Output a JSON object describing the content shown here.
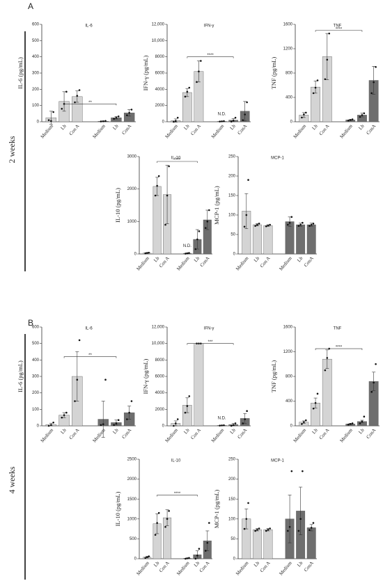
{
  "panels": [
    {
      "letter": "A",
      "period": "2 weeks"
    },
    {
      "letter": "B",
      "period": "4 weeks"
    }
  ],
  "chart_data": [
    {
      "type": "bar",
      "title": "IL-6",
      "ylabel": "IL-6 (pg/mL)",
      "categories": [
        "Medium",
        "Lb",
        "Con A",
        "Medium",
        "Lb",
        "ConA"
      ],
      "colors": [
        "#d4d4d4",
        "#d4d4d4",
        "#d4d4d4",
        "#6e6e6e",
        "#6e6e6e",
        "#6e6e6e"
      ],
      "values": [
        25,
        125,
        155,
        3,
        25,
        55
      ],
      "errors": [
        40,
        60,
        35,
        2,
        8,
        20
      ],
      "points": [
        [
          10,
          5,
          60
        ],
        [
          80,
          110,
          185
        ],
        [
          120,
          160,
          195
        ],
        [
          2,
          3,
          5
        ],
        [
          18,
          25,
          33
        ],
        [
          40,
          55,
          75
        ]
      ],
      "ylim": [
        0,
        600
      ],
      "yticks": [
        0,
        100,
        200,
        300,
        400,
        500,
        600
      ],
      "bracket": {
        "label": "**",
        "value": 110
      },
      "value_notes": [
        null,
        null,
        null,
        null,
        null,
        null
      ]
    },
    {
      "type": "bar",
      "title": "IFN-γ",
      "ylabel": "IFN-γ (pg/mL)",
      "categories": [
        "Medium",
        "Lb",
        "Con A",
        "Medium",
        "Lb",
        "ConA"
      ],
      "colors": [
        "#d4d4d4",
        "#d4d4d4",
        "#d4d4d4",
        "#6e6e6e",
        "#6e6e6e",
        "#6e6e6e"
      ],
      "values": [
        150,
        3600,
        6200,
        50,
        200,
        1300
      ],
      "errors": [
        200,
        500,
        1300,
        30,
        200,
        1200
      ],
      "points": [
        [
          0,
          100,
          500
        ],
        [
          3100,
          3700,
          4200
        ],
        [
          4900,
          6200,
          7500
        ],
        [
          30,
          50,
          80
        ],
        [
          20,
          150,
          500
        ],
        [
          200,
          900,
          2400
        ]
      ],
      "ylim": [
        0,
        12000
      ],
      "yticks": [
        0,
        {
          "value": 2000,
          "label": "2000"
        },
        {
          "value": 4000,
          "label": "4000"
        },
        {
          "value": 6000,
          "label": "6000"
        },
        {
          "value": 8000,
          "label": "8000"
        },
        {
          "value": 10000,
          "label": "10,000"
        },
        {
          "value": 12000,
          "label": "12,000"
        }
      ],
      "bracket": {
        "label": "****",
        "value": 8000
      },
      "value_notes": [
        null,
        null,
        null,
        "N.D.",
        null,
        null
      ]
    },
    {
      "type": "bar",
      "title": "TNF",
      "ylabel": "TNF (pg/mL)",
      "categories": [
        "Medium",
        "Lb",
        "Con A",
        "Medium",
        "Lb",
        "ConA"
      ],
      "colors": [
        "#d4d4d4",
        "#d4d4d4",
        "#d4d4d4",
        "#6e6e6e",
        "#6e6e6e",
        "#6e6e6e"
      ],
      "values": [
        110,
        570,
        1070,
        30,
        110,
        680
      ],
      "errors": [
        40,
        100,
        380,
        10,
        30,
        230
      ],
      "points": [
        [
          70,
          120,
          150
        ],
        [
          470,
          560,
          680
        ],
        [
          700,
          1020,
          1450
        ],
        [
          20,
          30,
          40
        ],
        [
          80,
          110,
          140
        ],
        [
          470,
          650,
          900
        ]
      ],
      "ylim": [
        0,
        1600
      ],
      "yticks": [
        0,
        400,
        800,
        1200,
        1600
      ],
      "bracket": {
        "label": "****",
        "value": 1500
      },
      "value_notes": [
        null,
        null,
        null,
        null,
        null,
        null
      ]
    },
    {
      "type": "bar",
      "title": "IL-10",
      "ylabel": "IL-10 (pg/mL)",
      "categories": [
        "Medium",
        "Lb",
        "Con A",
        "Medium",
        "Lb",
        "ConA"
      ],
      "colors": [
        "#d4d4d4",
        "#d4d4d4",
        "#d4d4d4",
        "#6e6e6e",
        "#6e6e6e",
        "#6e6e6e"
      ],
      "values": [
        30,
        2080,
        1830,
        20,
        450,
        1050
      ],
      "errors": [
        10,
        280,
        900,
        10,
        300,
        300
      ],
      "points": [
        [
          20,
          30,
          40
        ],
        [
          1800,
          2100,
          2400
        ],
        [
          900,
          1800,
          2700
        ],
        [
          10,
          20,
          30
        ],
        [
          150,
          450,
          700
        ],
        [
          800,
          1000,
          1350
        ]
      ],
      "ylim": [
        0,
        3000
      ],
      "yticks": [
        0,
        1000,
        2000,
        3000
      ],
      "bracket": {
        "label": "****",
        "value": 2850
      },
      "value_notes": [
        null,
        null,
        null,
        "N.D.",
        null,
        null
      ]
    },
    {
      "type": "bar",
      "title": "MCP-1",
      "ylabel": "MCP-1 (pg/mL)",
      "categories": [
        "Medium",
        "Lb",
        "Con A",
        "Medium",
        "Lb",
        "ConA"
      ],
      "colors": [
        "#d4d4d4",
        "#d4d4d4",
        "#d4d4d4",
        "#6e6e6e",
        "#6e6e6e",
        "#6e6e6e"
      ],
      "values": [
        110,
        75,
        73,
        83,
        75,
        75
      ],
      "errors": [
        45,
        3,
        2,
        12,
        4,
        4
      ],
      "points": [
        [
          70,
          100,
          190
        ],
        [
          72,
          75,
          78
        ],
        [
          71,
          73,
          75
        ],
        [
          75,
          80,
          95
        ],
        [
          72,
          75,
          80
        ],
        [
          72,
          75,
          78
        ]
      ],
      "ylim": [
        0,
        250
      ],
      "yticks": [
        0,
        50,
        100,
        150,
        200,
        250
      ],
      "value_notes": [
        null,
        null,
        null,
        null,
        null,
        null
      ]
    },
    {
      "type": "bar",
      "title": "IL-6",
      "ylabel": "IL-6 (pg/mL)",
      "categories": [
        "Medium",
        "Lb",
        "Con A",
        "Medium",
        "Lb",
        "ConA"
      ],
      "colors": [
        "#d4d4d4",
        "#d4d4d4",
        "#d4d4d4",
        "#6e6e6e",
        "#6e6e6e",
        "#6e6e6e"
      ],
      "values": [
        8,
        65,
        300,
        40,
        20,
        80
      ],
      "errors": [
        8,
        15,
        150,
        110,
        15,
        40
      ],
      "points": [
        [
          0,
          5,
          20
        ],
        [
          50,
          65,
          80
        ],
        [
          150,
          280,
          520
        ],
        [
          5,
          10,
          280
        ],
        [
          5,
          15,
          35
        ],
        [
          40,
          80,
          150
        ]
      ],
      "ylim": [
        0,
        600
      ],
      "yticks": [
        0,
        100,
        200,
        300,
        400,
        500,
        600
      ],
      "bracket": {
        "label": "**",
        "value": 420
      },
      "value_notes": [
        null,
        null,
        null,
        null,
        null,
        null
      ]
    },
    {
      "type": "bar",
      "title": "IFN-γ",
      "ylabel": "IFN-γ (pg/mL)",
      "categories": [
        "Medium",
        "Lb",
        "Con A",
        "Medium",
        "Lb",
        "ConA"
      ],
      "colors": [
        "#d4d4d4",
        "#d4d4d4",
        "#d4d4d4",
        "#6e6e6e",
        "#6e6e6e",
        "#6e6e6e"
      ],
      "values": [
        300,
        2500,
        10000,
        50,
        150,
        900
      ],
      "errors": [
        300,
        900,
        0,
        30,
        150,
        600
      ],
      "points": [
        [
          0,
          300,
          800
        ],
        [
          1600,
          2400,
          3600
        ],
        [
          10000,
          10000,
          10000
        ],
        [
          30,
          50,
          70
        ],
        [
          0,
          100,
          300
        ],
        [
          300,
          800,
          1800
        ]
      ],
      "ylim": [
        0,
        12000
      ],
      "yticks": [
        0,
        {
          "value": 2000,
          "label": "2000"
        },
        {
          "value": 4000,
          "label": "4000"
        },
        {
          "value": 6000,
          "label": "6000"
        },
        {
          "value": 8000,
          "label": "8000"
        },
        {
          "value": 10000,
          "label": "10,000"
        },
        {
          "value": 12000,
          "label": "12,000"
        }
      ],
      "bracket": {
        "label": "***",
        "value": 10000
      },
      "value_notes": [
        null,
        null,
        null,
        "N.D.",
        null,
        null
      ]
    },
    {
      "type": "bar",
      "title": "TNF",
      "ylabel": "TNF (pg/mL)",
      "categories": [
        "Medium",
        "Lb",
        "Con A",
        "Medium",
        "Lb",
        "ConA"
      ],
      "colors": [
        "#d4d4d4",
        "#d4d4d4",
        "#d4d4d4",
        "#6e6e6e",
        "#6e6e6e",
        "#6e6e6e"
      ],
      "values": [
        60,
        370,
        1080,
        30,
        70,
        720
      ],
      "errors": [
        20,
        80,
        150,
        10,
        20,
        150
      ],
      "points": [
        [
          30,
          60,
          90
        ],
        [
          280,
          370,
          520
        ],
        [
          900,
          1100,
          1250
        ],
        [
          20,
          30,
          40
        ],
        [
          40,
          70,
          150
        ],
        [
          550,
          700,
          1000
        ]
      ],
      "ylim": [
        0,
        1600
      ],
      "yticks": [
        0,
        400,
        800,
        1200,
        1600
      ],
      "bracket": {
        "label": "****",
        "value": 1250
      },
      "value_notes": [
        null,
        null,
        null,
        null,
        null,
        null
      ]
    },
    {
      "type": "bar",
      "title": "IL-10",
      "ylabel": "IL-10 (pg/mL)",
      "categories": [
        "Medium",
        "Lb",
        "Con A",
        "Medium",
        "Lb",
        "Con A"
      ],
      "colors": [
        "#d4d4d4",
        "#d4d4d4",
        "#d4d4d4",
        "#6e6e6e",
        "#6e6e6e",
        "#6e6e6e"
      ],
      "values": [
        40,
        880,
        1030,
        10,
        100,
        450
      ],
      "errors": [
        20,
        250,
        200,
        10,
        100,
        250
      ],
      "points": [
        [
          20,
          40,
          60
        ],
        [
          600,
          900,
          1150
        ],
        [
          800,
          1000,
          1200
        ],
        [
          0,
          10,
          20
        ],
        [
          0,
          80,
          250
        ],
        [
          200,
          400,
          900
        ]
      ],
      "ylim": [
        0,
        2500
      ],
      "yticks": [
        0,
        500,
        1000,
        1500,
        2000,
        2500
      ],
      "bracket": {
        "label": "****",
        "value": 1600
      },
      "value_notes": [
        null,
        null,
        null,
        null,
        null,
        null
      ]
    },
    {
      "type": "bar",
      "title": "MCP-1",
      "ylabel": "MCP-1 (pg/mL)",
      "categories": [
        "Medium",
        "Lb",
        "Con A",
        "Medium",
        "Lb",
        "ConA"
      ],
      "colors": [
        "#d4d4d4",
        "#d4d4d4",
        "#d4d4d4",
        "#6e6e6e",
        "#6e6e6e",
        "#6e6e6e"
      ],
      "values": [
        100,
        73,
        73,
        100,
        120,
        78
      ],
      "errors": [
        25,
        3,
        3,
        60,
        60,
        8
      ],
      "points": [
        [
          75,
          100,
          140
        ],
        [
          70,
          73,
          76
        ],
        [
          70,
          73,
          76
        ],
        [
          70,
          80,
          220
        ],
        [
          70,
          100,
          220
        ],
        [
          72,
          78,
          90
        ]
      ],
      "ylim": [
        0,
        250
      ],
      "yticks": [
        0,
        50,
        100,
        150,
        200,
        250
      ],
      "value_notes": [
        null,
        null,
        null,
        null,
        null,
        null
      ]
    }
  ]
}
